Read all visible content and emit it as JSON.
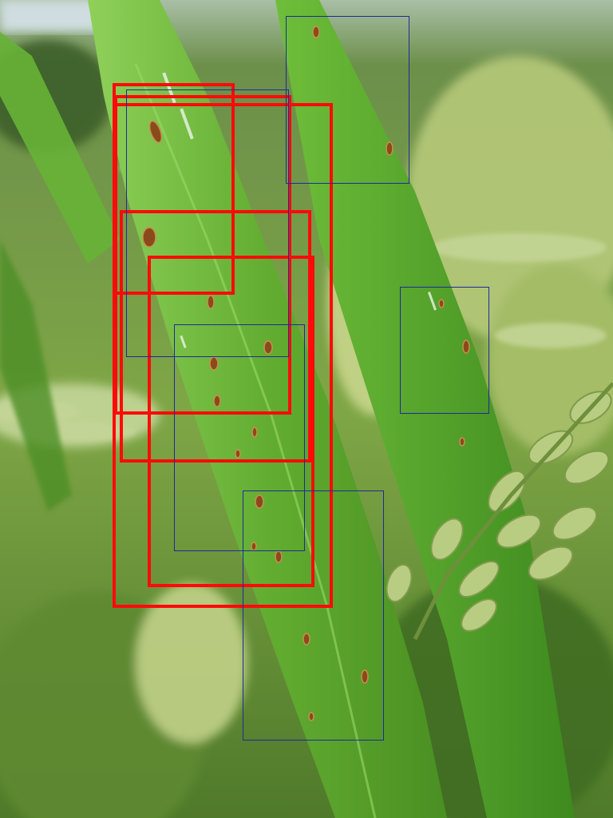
{
  "image": {
    "subject": "rice-leaf-with-brown-spot-lesions",
    "colors": {
      "sky": "#c9d7da",
      "background_foliage": "#6f9a3f",
      "leaf_main": "#5aa52e",
      "leaf_highlight": "#8fd05a",
      "lesion": "#8a4a1c",
      "panicle": "#bcd28a"
    }
  },
  "annotations": {
    "primary_color": "#ff0a0a",
    "secondary_color": "#1e2a9c",
    "primary_count": 5,
    "secondary_count": 5
  }
}
